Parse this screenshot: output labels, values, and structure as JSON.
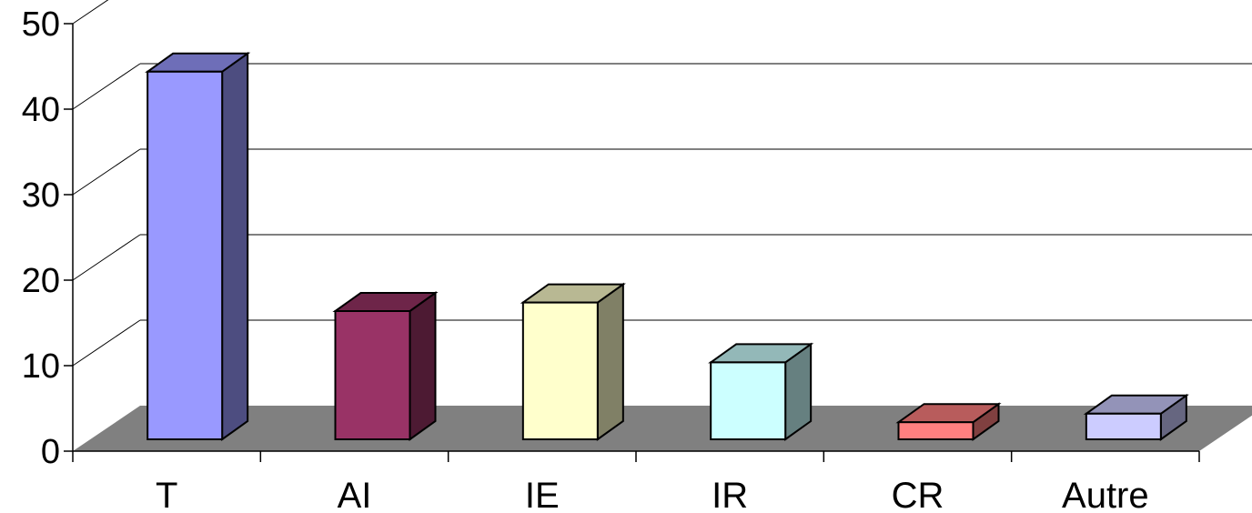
{
  "chart_data": {
    "type": "bar",
    "categories": [
      "T",
      "AI",
      "IE",
      "IR",
      "CR",
      "Autre"
    ],
    "values": [
      43,
      15,
      16,
      9,
      2,
      3
    ],
    "ylim": [
      0,
      50
    ],
    "yticks": [
      0,
      10,
      20,
      30,
      40,
      50
    ],
    "grid": true,
    "colors": [
      "#9999FF",
      "#993366",
      "#FFFFCC",
      "#CCFFFF",
      "#FF8080",
      "#CCCCFF"
    ],
    "floor_color": "#808080"
  }
}
